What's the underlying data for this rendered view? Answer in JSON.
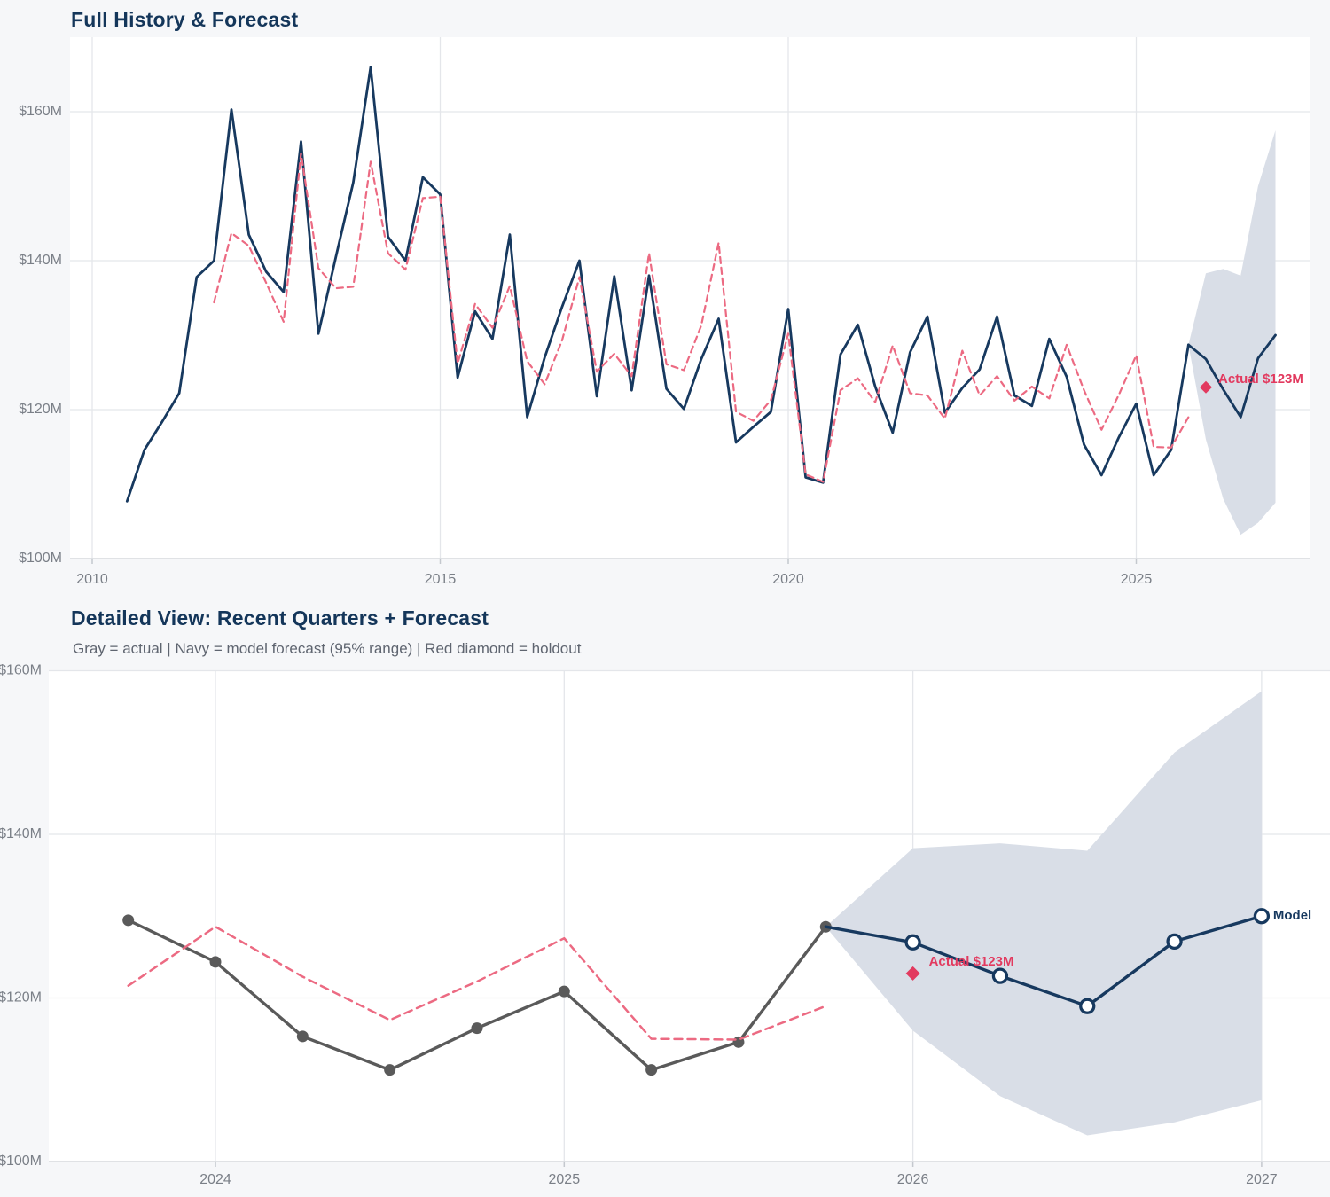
{
  "colors": {
    "navy": "#17395f",
    "pink": "#ec6a82",
    "gray": "#5a5a5a",
    "crimson": "#e23a5f",
    "band": "#d9dee7",
    "grid": "#e4e6ea",
    "axis_line": "#d7dade",
    "tick_mark": "#c4c8ce",
    "tick_label": "#7a7f87",
    "title": "#14365a",
    "subtitle": "#5f6570",
    "plot_bg": "#ffffff",
    "page_bg": "#f6f7f9"
  },
  "chart_data": [
    {
      "type": "line",
      "title": "Full History & Forecast",
      "x_axis": {
        "tick_labels": [
          "2010",
          "2015",
          "2020",
          "2025"
        ],
        "tick_values": [
          2010,
          2015,
          2020,
          2025
        ]
      },
      "y_axis": {
        "tick_labels": [
          "$160M",
          "$140M",
          "$120M",
          "$100M"
        ],
        "tick_values": [
          160,
          140,
          120,
          100
        ],
        "unit": "$M",
        "range": [
          100,
          170
        ]
      },
      "grid": true,
      "legend_position": "none",
      "series": [
        {
          "name": "actual-history",
          "color": "navy",
          "style": "solid",
          "marker": "none",
          "start": 2010.5,
          "step": 0.25,
          "values": [
            107.7,
            114.6,
            118.3,
            122.2,
            137.8,
            140.0,
            160.3,
            143.5,
            138.5,
            135.8,
            156.0,
            130.2,
            140.5,
            150.5,
            166.0,
            143.2,
            140.0,
            151.2,
            148.9,
            124.3,
            133.2,
            129.5,
            143.5,
            119.0,
            127.0,
            133.8,
            140.0,
            121.8,
            137.9,
            122.6,
            138.0,
            122.8,
            120.1,
            126.8,
            132.2,
            115.6,
            117.7,
            119.7,
            133.5,
            110.9,
            110.2,
            127.4,
            131.4,
            123.1,
            116.9,
            127.7,
            132.5,
            119.6,
            122.9,
            125.4,
            132.5,
            121.9,
            120.5,
            129.5,
            124.4,
            115.3,
            111.2,
            116.3,
            120.8,
            111.2,
            114.6,
            128.7
          ]
        },
        {
          "name": "benchmark-dashed",
          "color": "pink",
          "style": "dashed",
          "marker": "none",
          "start": 2011.75,
          "step": 0.25,
          "values": [
            134.4,
            143.7,
            142.0,
            137.0,
            131.8,
            154.4,
            139.0,
            136.3,
            136.5,
            153.3,
            141.0,
            138.8,
            148.4,
            148.6,
            126.2,
            134.2,
            131.0,
            136.6,
            126.5,
            123.4,
            129.3,
            137.8,
            125.1,
            127.5,
            124.5,
            141.0,
            126.1,
            125.3,
            131.3,
            142.4,
            119.7,
            118.5,
            121.3,
            130.2,
            111.3,
            110.3,
            122.6,
            124.2,
            121.0,
            128.6,
            122.2,
            121.9,
            118.8,
            127.9,
            121.9,
            124.5,
            121.2,
            123.1,
            121.5,
            128.7,
            122.6,
            117.3,
            122.0,
            127.3,
            115.0,
            114.9,
            119.0
          ]
        },
        {
          "name": "model-forecast",
          "color": "navy",
          "style": "solid",
          "marker": "none",
          "start": 2025.75,
          "step": 0.25,
          "values": [
            128.7,
            126.8,
            122.7,
            119.0,
            126.9,
            130.0
          ]
        }
      ],
      "band": {
        "name": "forecast-95-range",
        "start": 2025.75,
        "step": 0.25,
        "lower": [
          128.7,
          116.0,
          108.0,
          103.2,
          104.8,
          107.5
        ],
        "upper": [
          128.7,
          138.3,
          138.9,
          138.0,
          150.0,
          157.5
        ]
      },
      "annotation": {
        "label": "Actual $123M",
        "t": 2026.0,
        "value": 123
      }
    },
    {
      "type": "line",
      "title": "Detailed View: Recent Quarters + Forecast",
      "subtitle": "Gray = actual  |  Navy = model forecast (95% range)  |  Red diamond = holdout",
      "x_axis": {
        "tick_labels": [
          "2024",
          "2025",
          "2026",
          "2027"
        ],
        "tick_values": [
          2024,
          2025,
          2026,
          2027
        ]
      },
      "y_axis": {
        "tick_labels": [
          "$160M",
          "$140M",
          "$120M",
          "$100M"
        ],
        "tick_values": [
          160,
          140,
          120,
          100
        ],
        "unit": "$M",
        "range": [
          100,
          160
        ]
      },
      "grid": true,
      "legend_position": "none",
      "series": [
        {
          "name": "actual-recent",
          "color": "gray",
          "style": "solid",
          "marker": "dot",
          "start": 2023.75,
          "step": 0.25,
          "values": [
            129.5,
            124.4,
            115.3,
            111.2,
            116.3,
            120.8,
            111.2,
            114.6,
            128.7
          ]
        },
        {
          "name": "benchmark-dashed",
          "color": "pink",
          "style": "dashed",
          "marker": "none",
          "start": 2023.75,
          "step": 0.25,
          "values": [
            121.5,
            128.7,
            122.6,
            117.3,
            122.0,
            127.3,
            115.0,
            114.9,
            119.0
          ]
        },
        {
          "name": "model-forecast",
          "color": "navy",
          "style": "solid",
          "marker": "open-circle",
          "start": 2025.75,
          "step": 0.25,
          "values": [
            128.7,
            126.8,
            122.7,
            119.0,
            126.9,
            130.0
          ],
          "end_label": "Model"
        }
      ],
      "band": {
        "name": "forecast-95-range",
        "start": 2025.75,
        "step": 0.25,
        "lower": [
          128.7,
          116.0,
          108.0,
          103.2,
          104.8,
          107.5
        ],
        "upper": [
          128.7,
          138.3,
          138.9,
          138.0,
          150.0,
          157.5
        ]
      },
      "annotation": {
        "label": "Actual $123M",
        "t": 2026.0,
        "value": 123
      }
    }
  ]
}
